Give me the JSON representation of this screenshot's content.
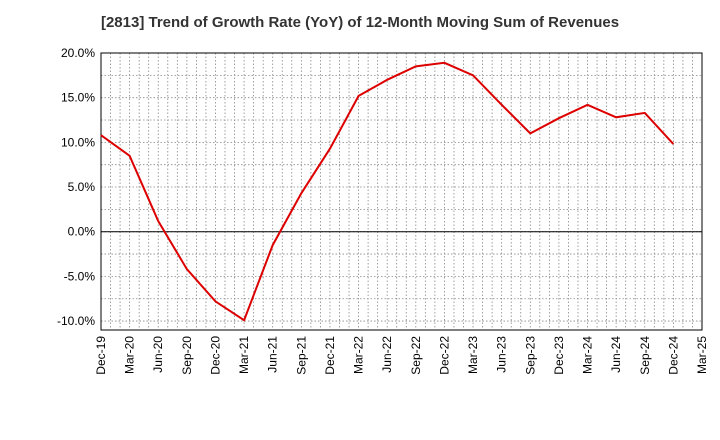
{
  "chart_data": {
    "type": "line",
    "title": "[2813]  Trend of Growth Rate (YoY) of 12-Month Moving Sum of Revenues",
    "xlabel": "",
    "ylabel": "",
    "ylim": [
      -11,
      20
    ],
    "y_ticks": [
      20,
      15,
      10,
      5,
      0,
      -5,
      -10
    ],
    "y_tick_labels": [
      "20.0%",
      "15.0%",
      "10.0%",
      "5.0%",
      "0.0%",
      "-5.0%",
      "-10.0%"
    ],
    "x_tick_labels": [
      "Dec-19",
      "Mar-20",
      "Jun-20",
      "Sep-20",
      "Dec-20",
      "Mar-21",
      "Jun-21",
      "Sep-21",
      "Dec-21",
      "Mar-22",
      "Jun-22",
      "Sep-22",
      "Dec-22",
      "Mar-23",
      "Jun-23",
      "Sep-23",
      "Dec-23",
      "Mar-24",
      "Jun-24",
      "Sep-24",
      "Dec-24",
      "Mar-25"
    ],
    "grid": true,
    "line_color": "#dd0000",
    "series": [
      {
        "x": [
          "Dec-19",
          "Mar-20",
          "Jun-20",
          "Sep-20",
          "Dec-20",
          "Mar-21",
          "Jun-21",
          "Sep-21",
          "Dec-21",
          "Mar-22",
          "Jun-22",
          "Sep-22",
          "Dec-22",
          "Mar-23",
          "Jun-23",
          "Sep-23",
          "Dec-23",
          "Mar-24",
          "Jun-24",
          "Sep-24",
          "Dec-24"
        ],
        "values": [
          10.8,
          8.5,
          1.2,
          -4.2,
          -7.8,
          -9.9,
          -1.5,
          4.3,
          9.3,
          15.2,
          17.0,
          18.5,
          18.9,
          17.5,
          14.2,
          11.0,
          12.7,
          14.2,
          12.8,
          13.3,
          9.8
        ]
      }
    ]
  }
}
